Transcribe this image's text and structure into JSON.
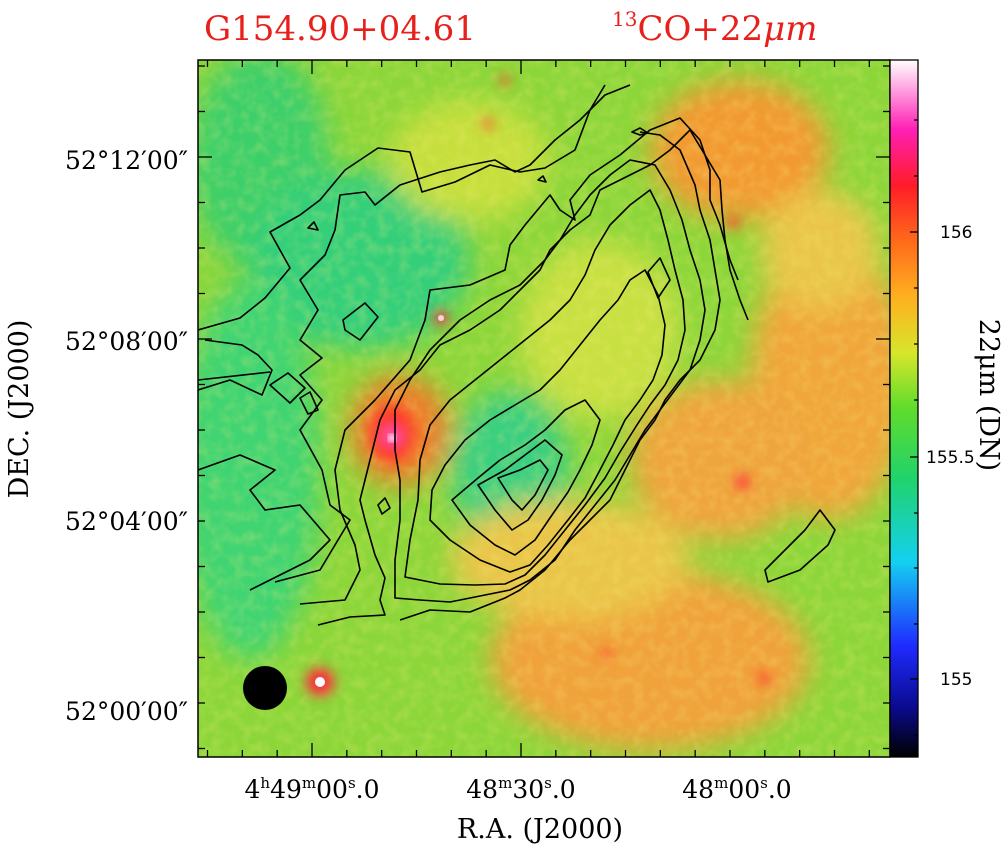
{
  "figure": {
    "source_name": "G154.90+04.61",
    "tracer_label": "CO+22",
    "tracer_isotope": "13",
    "tracer_unit": "μm",
    "colors": {
      "title": "#e8201c",
      "contour": "#000000",
      "beam": "#000000"
    }
  },
  "axes": {
    "xlabel": "R.A.  (J2000)",
    "ylabel": "DEC.  (J2000)",
    "ra_ticks": [
      {
        "h": "4",
        "m": "49",
        "s": "00",
        "frac": "0"
      },
      {
        "h": "",
        "m": "48",
        "s": "30",
        "frac": "0"
      },
      {
        "h": "",
        "m": "48",
        "s": "00",
        "frac": "0"
      }
    ],
    "dec_ticks": [
      "52°12′00″",
      "52°08′00″",
      "52°04′00″",
      "52°00′00″"
    ]
  },
  "colorbar": {
    "label": "22μm  (DN)",
    "ticks": [
      "156",
      "155.5",
      "155"
    ]
  },
  "icons": {
    "beam": "filled-circle-icon"
  }
}
